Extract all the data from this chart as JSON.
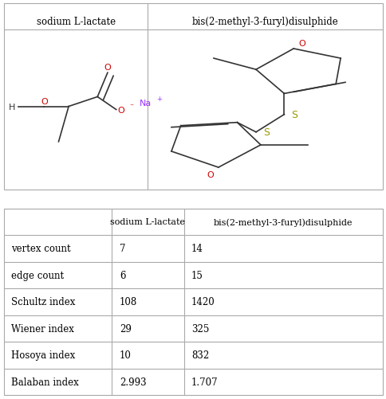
{
  "title1": "sodium L-lactate",
  "title2": "bis(2-methyl-3-furyl)disulphide",
  "rows": [
    {
      "label": "vertex count",
      "val1": "7",
      "val2": "14"
    },
    {
      "label": "edge count",
      "val1": "6",
      "val2": "15"
    },
    {
      "label": "Schultz index",
      "val1": "108",
      "val2": "1420"
    },
    {
      "label": "Wiener index",
      "val1": "29",
      "val2": "325"
    },
    {
      "label": "Hosoya index",
      "val1": "10",
      "val2": "832"
    },
    {
      "label": "Balaban index",
      "val1": "2.993",
      "val2": "1.707"
    }
  ],
  "bg_color": "#ffffff",
  "border_color": "#aaaaaa",
  "text_color": "#000000",
  "o_color": "#cc0000",
  "na_color": "#9933ff",
  "s_color": "#999900",
  "c_color": "#333333",
  "divx": 0.38,
  "col_bounds": [
    0.0,
    0.285,
    0.475,
    1.0
  ]
}
